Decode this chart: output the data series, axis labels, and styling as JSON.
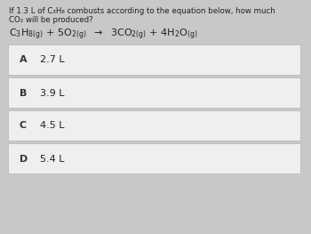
{
  "background_color": "#c8c8c8",
  "question_line1": "If 1.3 L of C₃H₈ combusts according to the equation below, how much",
  "question_line2": "CO₂ will be produced?",
  "choices": [
    {
      "label": "A",
      "text": "2.7 L"
    },
    {
      "label": "B",
      "text": "3.9 L"
    },
    {
      "label": "C",
      "text": "4.5 L"
    },
    {
      "label": "D",
      "text": "5.4 L"
    }
  ],
  "choice_bg": "#efefef",
  "choice_border": "#bbbbbb",
  "text_color": "#222222",
  "label_color": "#333333"
}
